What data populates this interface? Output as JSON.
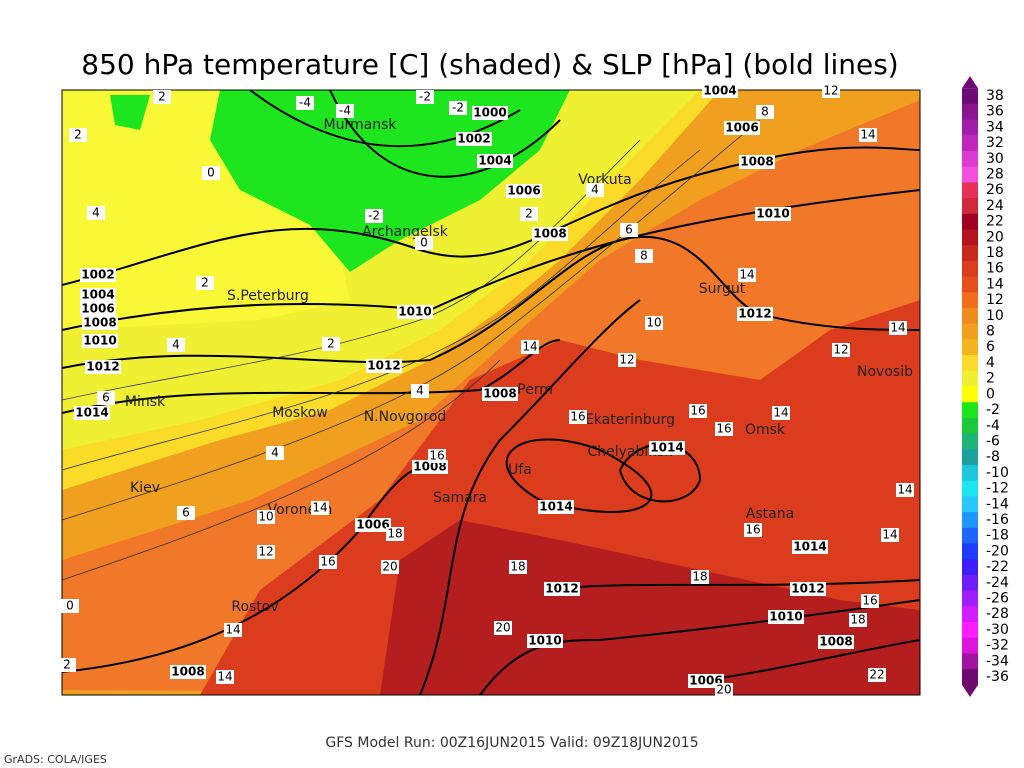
{
  "header": {
    "title": "850 hPa temperature [C] (shaded) & SLP [hPa] (bold lines)"
  },
  "footer": {
    "run": "GFS Model Run: 00Z16JUN2015  Valid: 09Z18JUN2015",
    "credit": "GrADS: COLA/IGES"
  },
  "colorbar": {
    "labels": [
      38,
      36,
      34,
      32,
      30,
      28,
      26,
      24,
      22,
      20,
      18,
      16,
      14,
      12,
      10,
      8,
      6,
      4,
      2,
      0,
      -2,
      -4,
      -6,
      -8,
      -10,
      -12,
      -14,
      -16,
      -18,
      -20,
      -22,
      -24,
      -26,
      -28,
      -30,
      -32,
      -34,
      -36
    ],
    "colors": [
      "#6e0a78",
      "#8c1491",
      "#a01eaa",
      "#be28be",
      "#dc3cd2",
      "#f050dc",
      "#e6325a",
      "#d2283c",
      "#a00020",
      "#b4141e",
      "#c8281e",
      "#dc3c1e",
      "#e6501e",
      "#f06e1e",
      "#f08c1e",
      "#f0a01e",
      "#f5b41e",
      "#fadc28",
      "#f0f032",
      "#ffff00",
      "#1ee61e",
      "#1ec83c",
      "#1eb478",
      "#1ea0a0",
      "#1ec8dc",
      "#1ee6f0",
      "#28c8ff",
      "#1e96ff",
      "#1e64ff",
      "#1e3cff",
      "#3c1eff",
      "#6e1eff",
      "#a01eff",
      "#d21eff",
      "#ff1eff",
      "#dc14dc",
      "#a014a0",
      "#6e0a6e"
    ]
  },
  "map": {
    "cities": [
      "Murmansk",
      "Archangelsk",
      "Vorkuta",
      "S.Peterburg",
      "Surgut",
      "Perm",
      "Novosib",
      "Minsk",
      "Moskow",
      "N.Novgorod",
      "Ekaterinburg",
      "Omsk",
      "Chelyabinsk",
      "Ufa",
      "Kiev",
      "Samara",
      "Voronezh",
      "Astana",
      "Rostov"
    ],
    "isobar_labels": [
      1000,
      1002,
      1004,
      1006,
      1008,
      1004,
      1006,
      1008,
      1010,
      1012,
      1010,
      1012,
      1008,
      1008,
      1014,
      1014,
      1006,
      1012,
      1010,
      1014,
      1012,
      1010,
      1008,
      1006,
      1008,
      1002,
      1004,
      1006,
      1008,
      1010,
      1012,
      1014
    ],
    "temperature_labels": [
      -4,
      -4,
      -2,
      -2,
      -2,
      0,
      2,
      4,
      6,
      8,
      14,
      10,
      12,
      14,
      16,
      16,
      16,
      14,
      12,
      14,
      14,
      8,
      12,
      2,
      2,
      0,
      4,
      2,
      4,
      2,
      4,
      4,
      6,
      16,
      6,
      10,
      14,
      12,
      18,
      16,
      20,
      18,
      16,
      14,
      14,
      18,
      16,
      18,
      14,
      20,
      14,
      22,
      0,
      2,
      20
    ]
  }
}
